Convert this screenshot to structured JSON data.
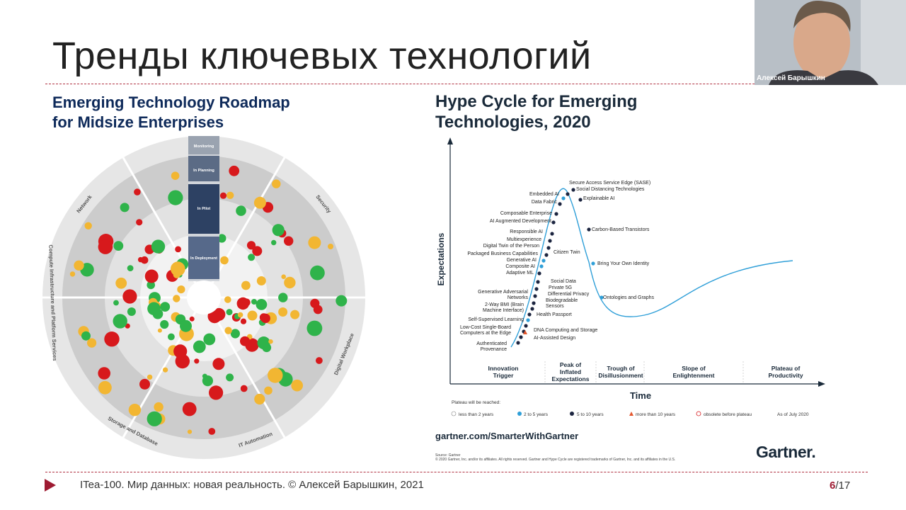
{
  "slide": {
    "title": "Тренды ключевых технологий",
    "footer": "ITea-100. Мир данных: новая реальность. © Алексей Барышкин, 2021",
    "page_current": "6",
    "page_total": "/17"
  },
  "webcam": {
    "name": "Алексей Барышкин"
  },
  "roadmap": {
    "title_line1": "Emerging Technology Roadmap",
    "title_line2": "for Midsize Enterprises",
    "sectors": [
      "Network",
      "Security",
      "Digital Workplace",
      "IT Automation",
      "Storage and Database",
      "Compute Infrastructure and Platform Services"
    ],
    "stages": [
      "Monitoring",
      "In Planning",
      "In Pilot",
      "In Deployment"
    ]
  },
  "hype": {
    "title_line1": "Hype Cycle for Emerging",
    "title_line2": "Technologies, 2020",
    "y_axis": "Expectations",
    "x_axis": "Time",
    "phases": [
      {
        "l1": "Innovation",
        "l2": "Trigger",
        "l3": ""
      },
      {
        "l1": "Peak of",
        "l2": "Inflated",
        "l3": "Expectations"
      },
      {
        "l1": "Trough of",
        "l2": "Disillusionment",
        "l3": ""
      },
      {
        "l1": "Slope of",
        "l2": "Enlightenment",
        "l3": ""
      },
      {
        "l1": "Plateau of",
        "l2": "Productivity",
        "l3": ""
      }
    ],
    "labels_left": [
      "Embedded AI",
      "Data Fabric",
      "Composable Enterprise",
      "AI Augmented Development",
      "Responsible AI",
      "Multiexperience",
      "Digital Twin of the Person",
      "Packaged Business Capabilities",
      "Generative AI",
      "Composite AI",
      "Adaptive ML",
      "Generative Adversarial",
      "Networks",
      "2-Way BMI (Brain",
      "Machine Interface)",
      "Self-Supervised Learning",
      "Low-Cost Single-Board",
      "Computers at the Edge",
      "Authenticated",
      "Provenance"
    ],
    "labels_right": [
      "Secure Access Service Edge (SASE)",
      "Social Distancing Technologies",
      "Explainable AI",
      "Carbon-Based Transistors",
      "Citizen Twin",
      "Bring Your Own Identity",
      "Social Data",
      "Private 5G",
      "Differential Privacy",
      "Biodegradable",
      "Sensors",
      "Ontologies and Graphs",
      "Health Passport",
      "DNA Computing and Storage",
      "AI-Assisted Design"
    ],
    "legend_title": "Plateau will be reached:",
    "legend": [
      "less than 2 years",
      "2 to 5 years",
      "5 to 10 years",
      "more than 10 years",
      "obsolete before plateau"
    ],
    "as_of": "As of July 2020",
    "url": "gartner.com/SmarterWithGartner",
    "source1": "Source: Gartner",
    "source2": "© 2020 Gartner, Inc. and/or its affiliates. All rights reserved. Gartner and Hype Cycle are registered trademarks of Gartner, Inc. and its affiliates in the U.S.",
    "brand": "Gartner."
  },
  "colors": {
    "accent": "#9e1b32",
    "navy": "#1a2a3a",
    "green": "#2fb34a",
    "yellow": "#f2b632",
    "red": "#d7191c",
    "blue": "#2f9fd8",
    "dark": "#1c2540"
  }
}
